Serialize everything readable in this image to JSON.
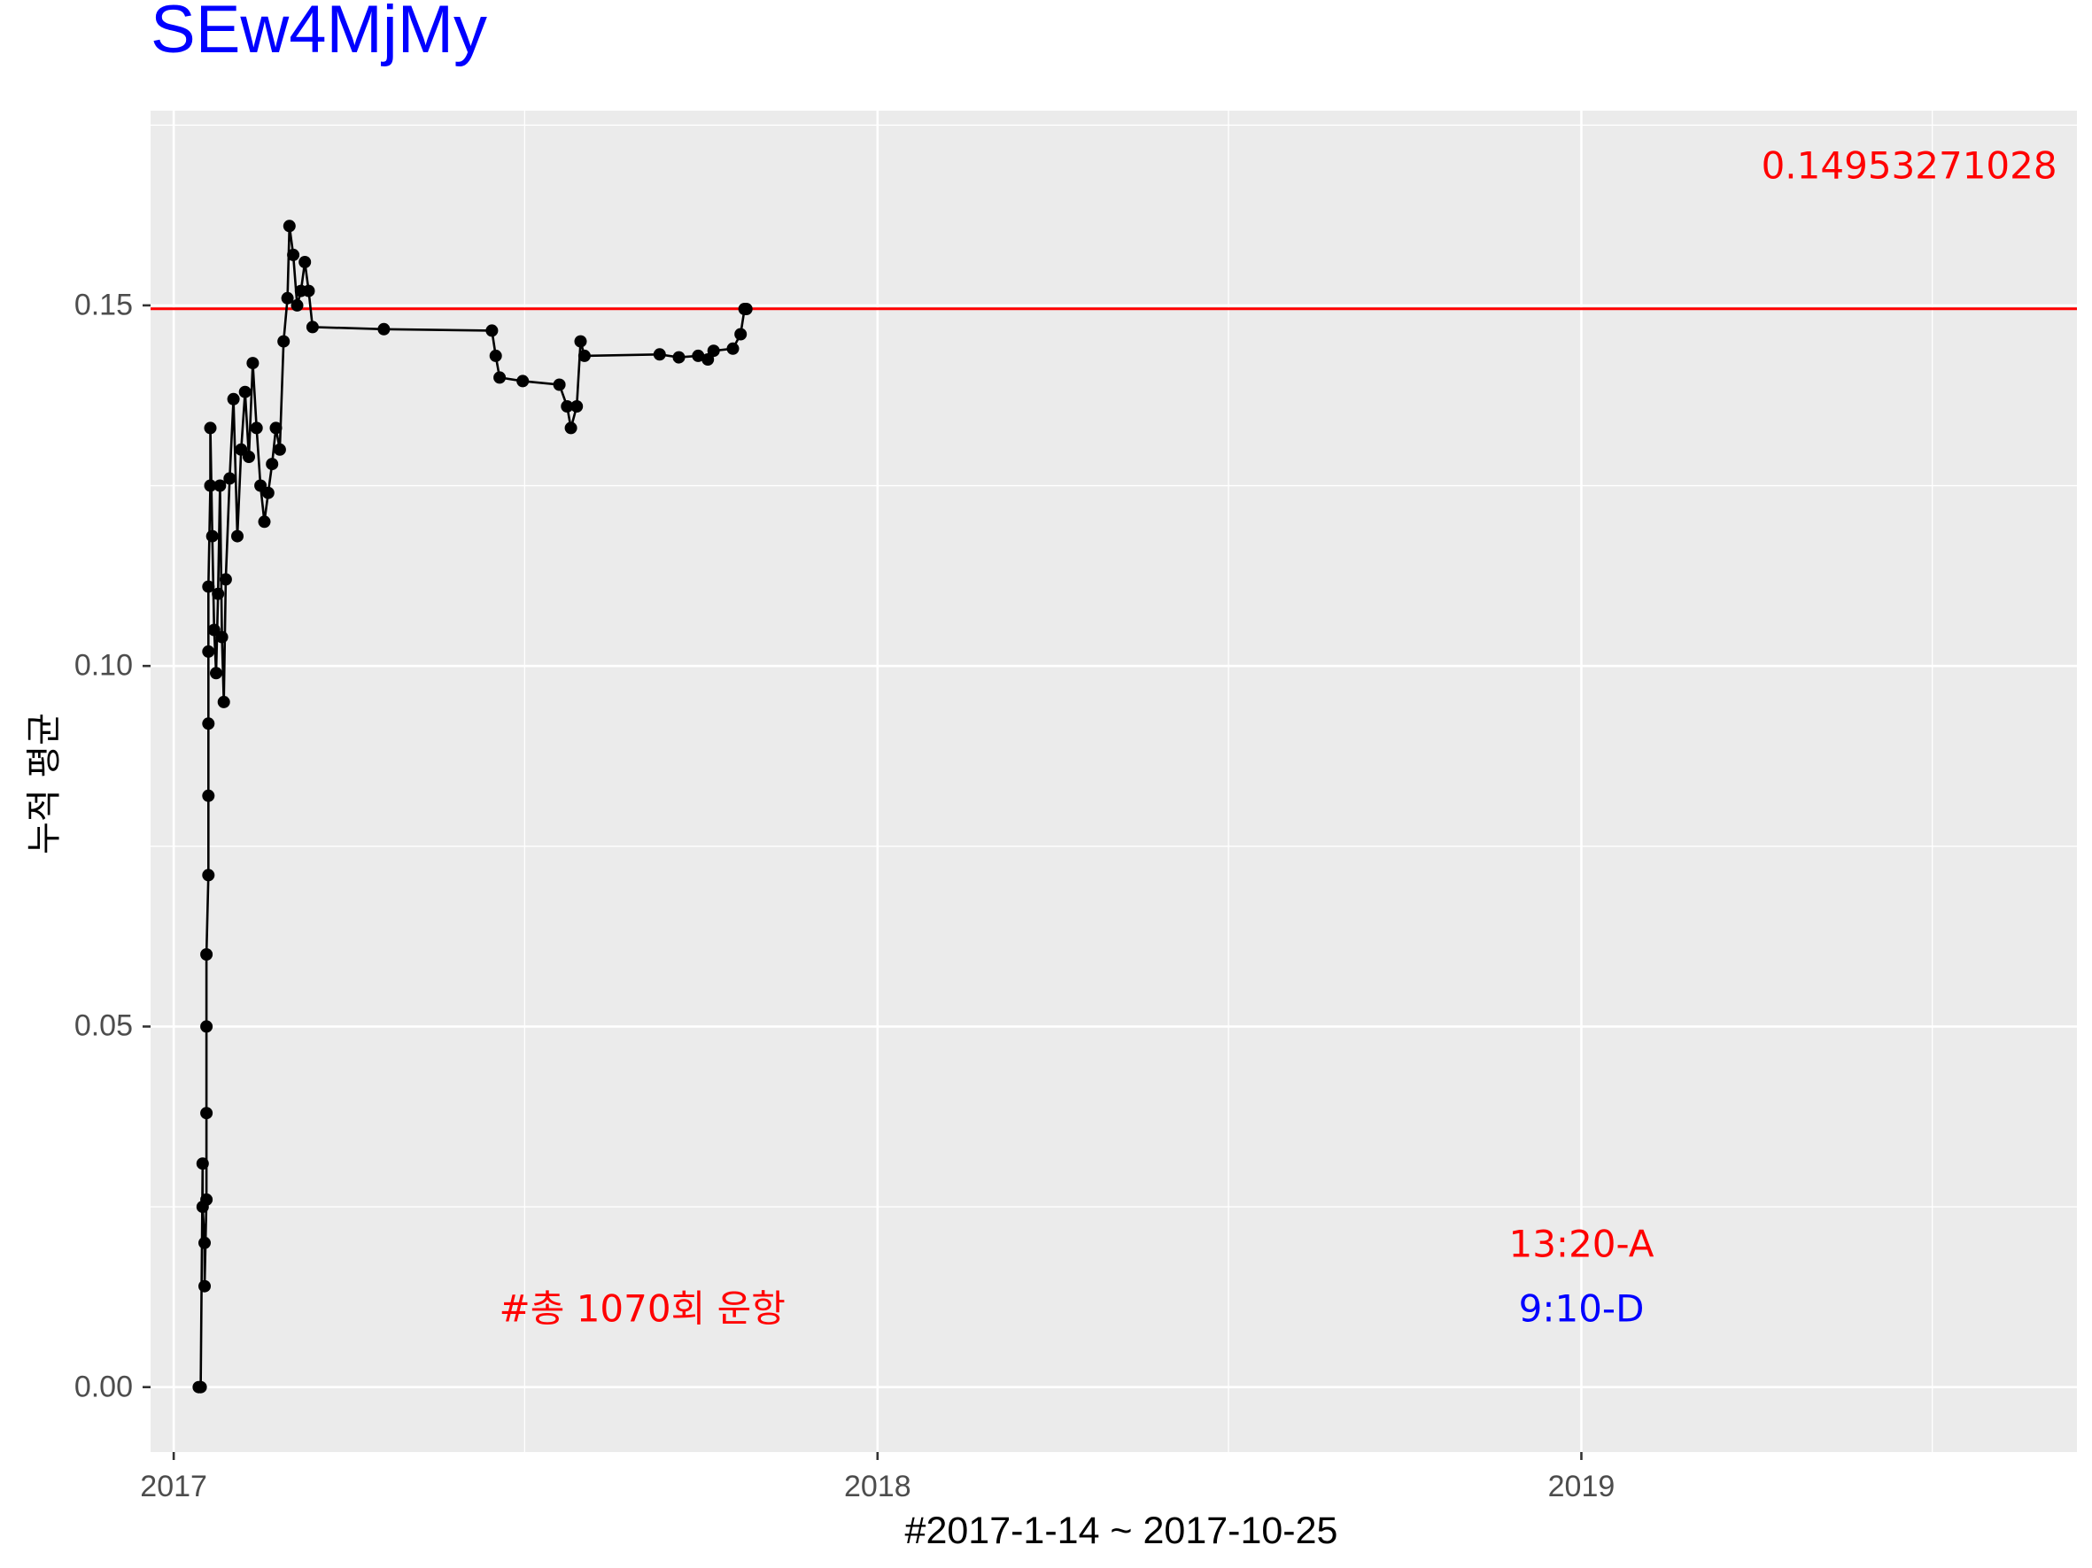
{
  "title": "SEw4MjMy",
  "chart_data": {
    "type": "line",
    "title": "SEw4MjMy",
    "xlabel": "#2017-1-14 ~ 2017-10-25",
    "ylabel": "누적 평균",
    "x_axis_type": "date",
    "xlim": [
      "2016-12-20",
      "2019-09-15"
    ],
    "ylim": [
      -0.009,
      0.177
    ],
    "x_ticks": [
      "2017",
      "2018",
      "2019"
    ],
    "y_ticks": [
      "0.00",
      "0.05",
      "0.10",
      "0.15"
    ],
    "grid": true,
    "series": [
      {
        "points": [
          [
            "2017-01-14",
            0.0
          ],
          [
            "2017-01-15",
            0.0
          ],
          [
            "2017-01-16",
            0.031
          ],
          [
            "2017-01-16",
            0.025
          ],
          [
            "2017-01-17",
            0.02
          ],
          [
            "2017-01-17",
            0.014
          ],
          [
            "2017-01-18",
            0.026
          ],
          [
            "2017-01-18",
            0.038
          ],
          [
            "2017-01-18",
            0.05
          ],
          [
            "2017-01-18",
            0.06
          ],
          [
            "2017-01-19",
            0.071
          ],
          [
            "2017-01-19",
            0.082
          ],
          [
            "2017-01-19",
            0.092
          ],
          [
            "2017-01-19",
            0.102
          ],
          [
            "2017-01-19",
            0.111
          ],
          [
            "2017-01-20",
            0.125
          ],
          [
            "2017-01-20",
            0.133
          ],
          [
            "2017-01-21",
            0.118
          ],
          [
            "2017-01-22",
            0.105
          ],
          [
            "2017-01-23",
            0.099
          ],
          [
            "2017-01-24",
            0.11
          ],
          [
            "2017-01-25",
            0.125
          ],
          [
            "2017-01-26",
            0.104
          ],
          [
            "2017-01-27",
            0.095
          ],
          [
            "2017-01-28",
            0.112
          ],
          [
            "2017-01-30",
            0.126
          ],
          [
            "2017-02-01",
            0.137
          ],
          [
            "2017-02-03",
            0.118
          ],
          [
            "2017-02-05",
            0.13
          ],
          [
            "2017-02-07",
            0.138
          ],
          [
            "2017-02-09",
            0.129
          ],
          [
            "2017-02-11",
            0.142
          ],
          [
            "2017-02-13",
            0.133
          ],
          [
            "2017-02-15",
            0.125
          ],
          [
            "2017-02-17",
            0.12
          ],
          [
            "2017-02-19",
            0.124
          ],
          [
            "2017-02-21",
            0.128
          ],
          [
            "2017-02-23",
            0.133
          ],
          [
            "2017-02-25",
            0.13
          ],
          [
            "2017-02-27",
            0.145
          ],
          [
            "2017-03-01",
            0.151
          ],
          [
            "2017-03-02",
            0.161
          ],
          [
            "2017-03-04",
            0.157
          ],
          [
            "2017-03-06",
            0.15
          ],
          [
            "2017-03-08",
            0.152
          ],
          [
            "2017-03-10",
            0.156
          ],
          [
            "2017-03-12",
            0.152
          ],
          [
            "2017-03-14",
            0.147
          ],
          [
            "2017-04-20",
            0.1467
          ],
          [
            "2017-06-15",
            0.1465
          ],
          [
            "2017-06-17",
            0.143
          ],
          [
            "2017-06-19",
            0.14
          ],
          [
            "2017-07-01",
            0.1395
          ],
          [
            "2017-07-20",
            0.139
          ],
          [
            "2017-07-24",
            0.136
          ],
          [
            "2017-07-26",
            0.133
          ],
          [
            "2017-07-29",
            0.136
          ],
          [
            "2017-07-31",
            0.145
          ],
          [
            "2017-08-02",
            0.143
          ],
          [
            "2017-09-10",
            0.1432
          ],
          [
            "2017-09-20",
            0.1428
          ],
          [
            "2017-09-30",
            0.143
          ],
          [
            "2017-10-05",
            0.1425
          ],
          [
            "2017-10-08",
            0.1437
          ],
          [
            "2017-10-18",
            0.144
          ],
          [
            "2017-10-22",
            0.146
          ],
          [
            "2017-10-24",
            0.1495
          ],
          [
            "2017-10-25",
            0.1495
          ]
        ],
        "color": "#000000"
      }
    ],
    "hline": {
      "y": 0.14953271028,
      "color": "#ff0000"
    },
    "annotations": [
      {
        "text": "0.14953271028",
        "color": "#ff0000",
        "x": "2019-06-20",
        "y": 0.169
      },
      {
        "text": "13:20-A",
        "color": "#ff0000",
        "x": "2019-01-01",
        "y": 0.0195
      },
      {
        "text": "9:10-D",
        "color": "#0000ff",
        "x": "2019-01-01",
        "y": 0.0105
      },
      {
        "text": "#총 1070회 운항",
        "color": "#ff0000",
        "x": "2017-09-01",
        "y": 0.0105
      }
    ]
  }
}
